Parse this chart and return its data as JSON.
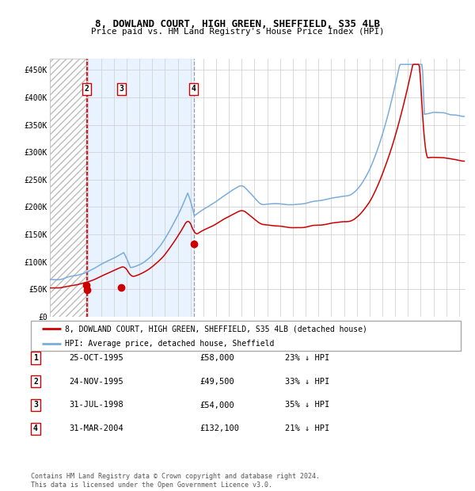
{
  "title": "8, DOWLAND COURT, HIGH GREEN, SHEFFIELD, S35 4LB",
  "subtitle": "Price paid vs. HM Land Registry's House Price Index (HPI)",
  "transactions": [
    {
      "num": 1,
      "date": "25-OCT-1995",
      "date_float": 1995.82,
      "price": 58000,
      "pct": "23% ↓ HPI"
    },
    {
      "num": 2,
      "date": "24-NOV-1995",
      "date_float": 1995.9,
      "price": 49500,
      "pct": "33% ↓ HPI"
    },
    {
      "num": 3,
      "date": "31-JUL-1998",
      "date_float": 1998.58,
      "price": 54000,
      "pct": "35% ↓ HPI"
    },
    {
      "num": 4,
      "date": "31-MAR-2004",
      "date_float": 2004.25,
      "price": 132100,
      "pct": "21% ↓ HPI"
    }
  ],
  "red_line_color": "#cc0000",
  "blue_line_color": "#7aacdc",
  "shade_color": "#ddeeff",
  "vline_red_color": "#cc0000",
  "vline_gray_color": "#888888",
  "footer": "Contains HM Land Registry data © Crown copyright and database right 2024.\nThis data is licensed under the Open Government Licence v3.0.",
  "legend1": "8, DOWLAND COURT, HIGH GREEN, SHEFFIELD, S35 4LB (detached house)",
  "legend2": "HPI: Average price, detached house, Sheffield",
  "ylim": [
    0,
    470000
  ],
  "xlim_start": 1993.0,
  "xlim_end": 2025.5
}
